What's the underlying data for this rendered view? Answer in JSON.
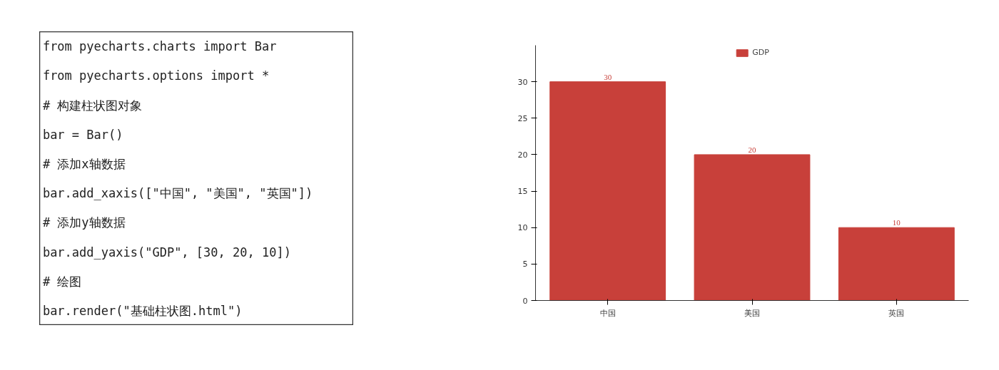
{
  "chart_data": [
    {
      "type": "other",
      "annotations": [
        "from pyecharts.charts import Bar",
        "from pyecharts.options import *",
        "# 构建柱状图对象",
        "bar = Bar()",
        "# 添加x轴数据",
        "bar.add_xaxis([\"中国\", \"美国\", \"英国\"])",
        "# 添加y轴数据",
        "bar.add_yaxis(\"GDP\", [30, 20, 10])",
        "# 绘图",
        "bar.render(\"基础柱状图.html\")"
      ]
    },
    {
      "type": "bar",
      "categories": [
        "中国",
        "美国",
        "英国"
      ],
      "series": [
        {
          "name": "GDP",
          "color": "#c8403a",
          "values": [
            30,
            20,
            10
          ]
        }
      ],
      "ylim": [
        0,
        35
      ],
      "yticks": [
        0,
        5,
        10,
        15,
        20,
        25,
        30
      ],
      "legend": "top",
      "data_labels": true
    }
  ]
}
